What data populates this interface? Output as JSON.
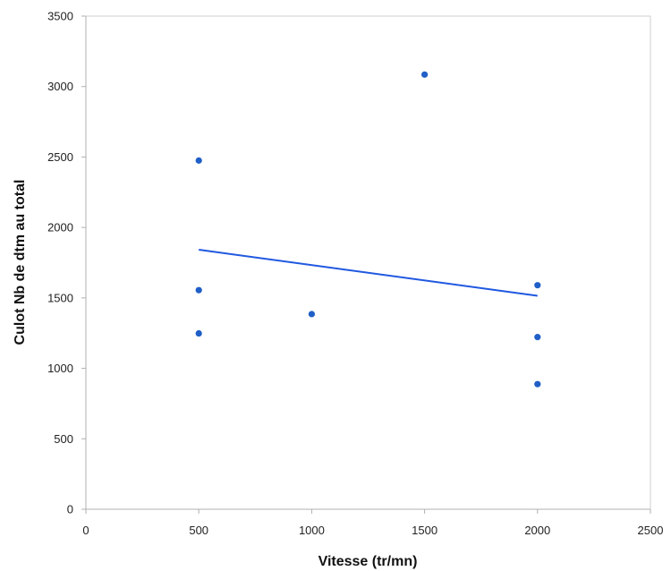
{
  "chart_data": {
    "type": "scatter",
    "title": "",
    "xlabel": "Vitesse (tr/mn)",
    "ylabel": "Culot Nb de dtm au total",
    "xlim": [
      0,
      2500
    ],
    "ylim": [
      0,
      3500
    ],
    "xticks": [
      0,
      500,
      1000,
      1500,
      2000,
      2500
    ],
    "yticks": [
      0,
      500,
      1000,
      1500,
      2000,
      2500,
      3000,
      3500
    ],
    "grid": false,
    "legend": "none",
    "points": [
      {
        "x": 500,
        "y": 2475
      },
      {
        "x": 500,
        "y": 1555
      },
      {
        "x": 500,
        "y": 1248
      },
      {
        "x": 1000,
        "y": 1385
      },
      {
        "x": 1500,
        "y": 3085
      },
      {
        "x": 2000,
        "y": 1590
      },
      {
        "x": 2000,
        "y": 1222
      },
      {
        "x": 2000,
        "y": 888
      }
    ],
    "trendline": {
      "type": "linear",
      "x": [
        500,
        2000
      ],
      "y": [
        1842,
        1515
      ]
    },
    "colors": {
      "points": "#1f5fc7",
      "trendline": "#2058e0",
      "axis": "#b0b0b0",
      "border": "#cfcfcf"
    }
  }
}
